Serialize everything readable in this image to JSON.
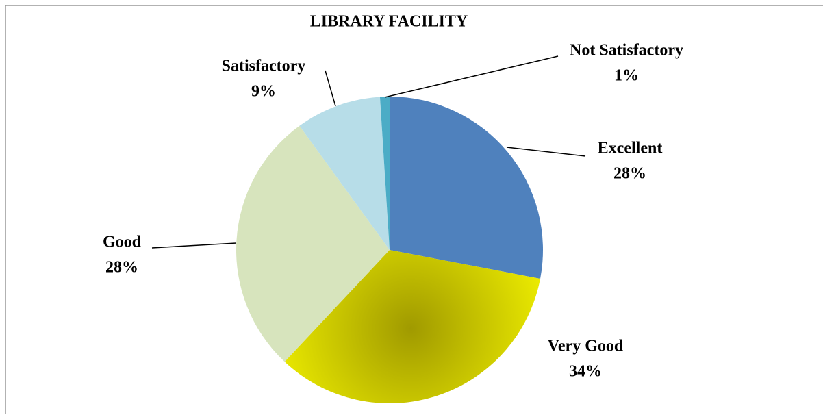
{
  "chart_data": {
    "type": "pie",
    "title": "LIBRARY FACILITY",
    "categories": [
      "Excellent",
      "Very Good",
      "Good",
      "Satisfactory",
      "Not Satisfactory"
    ],
    "values": [
      28,
      34,
      28,
      9,
      1
    ],
    "value_labels": [
      "28%",
      "34%",
      "28%",
      "9%",
      "1%"
    ],
    "colors": [
      "#4f81bd",
      "#f2f200",
      "#d7e4bd",
      "#b7dde8",
      "#4bacc6"
    ]
  }
}
